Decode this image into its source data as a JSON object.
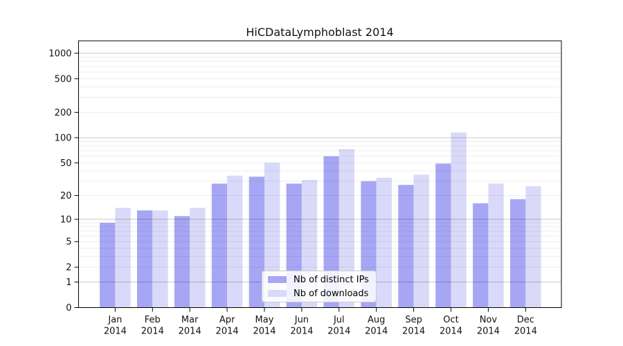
{
  "chart_data": {
    "type": "bar",
    "title": "HiCDataLymphoblast 2014",
    "categories": [
      "Jan",
      "Feb",
      "Mar",
      "Apr",
      "May",
      "Jun",
      "Jul",
      "Aug",
      "Sep",
      "Oct",
      "Nov",
      "Dec"
    ],
    "category_year": "2014",
    "series": [
      {
        "name": "Nb of distinct IPs",
        "color": "#a6a6f4",
        "values": [
          9,
          13,
          11,
          28,
          34,
          28,
          60,
          30,
          27,
          49,
          16,
          18
        ]
      },
      {
        "name": "Nb of downloads",
        "color": "#d9d9f9",
        "values": [
          14,
          13,
          14,
          35,
          50,
          31,
          73,
          33,
          36,
          115,
          28,
          26
        ]
      }
    ],
    "yscale": "log1p",
    "yticks": [
      0,
      1,
      2,
      5,
      10,
      20,
      50,
      100,
      200,
      500,
      1000
    ],
    "major_gridlines": [
      1,
      10,
      100,
      1000
    ],
    "ylim": [
      0,
      1400
    ],
    "xlabel": "",
    "ylabel": "",
    "grid": "horizontal",
    "legend_position": "lower-center"
  }
}
